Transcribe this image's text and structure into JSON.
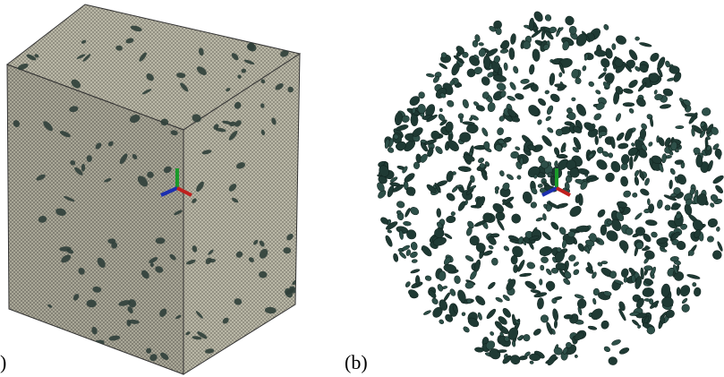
{
  "panels": [
    {
      "label": ")"
    },
    {
      "label": "(b)"
    }
  ]
}
